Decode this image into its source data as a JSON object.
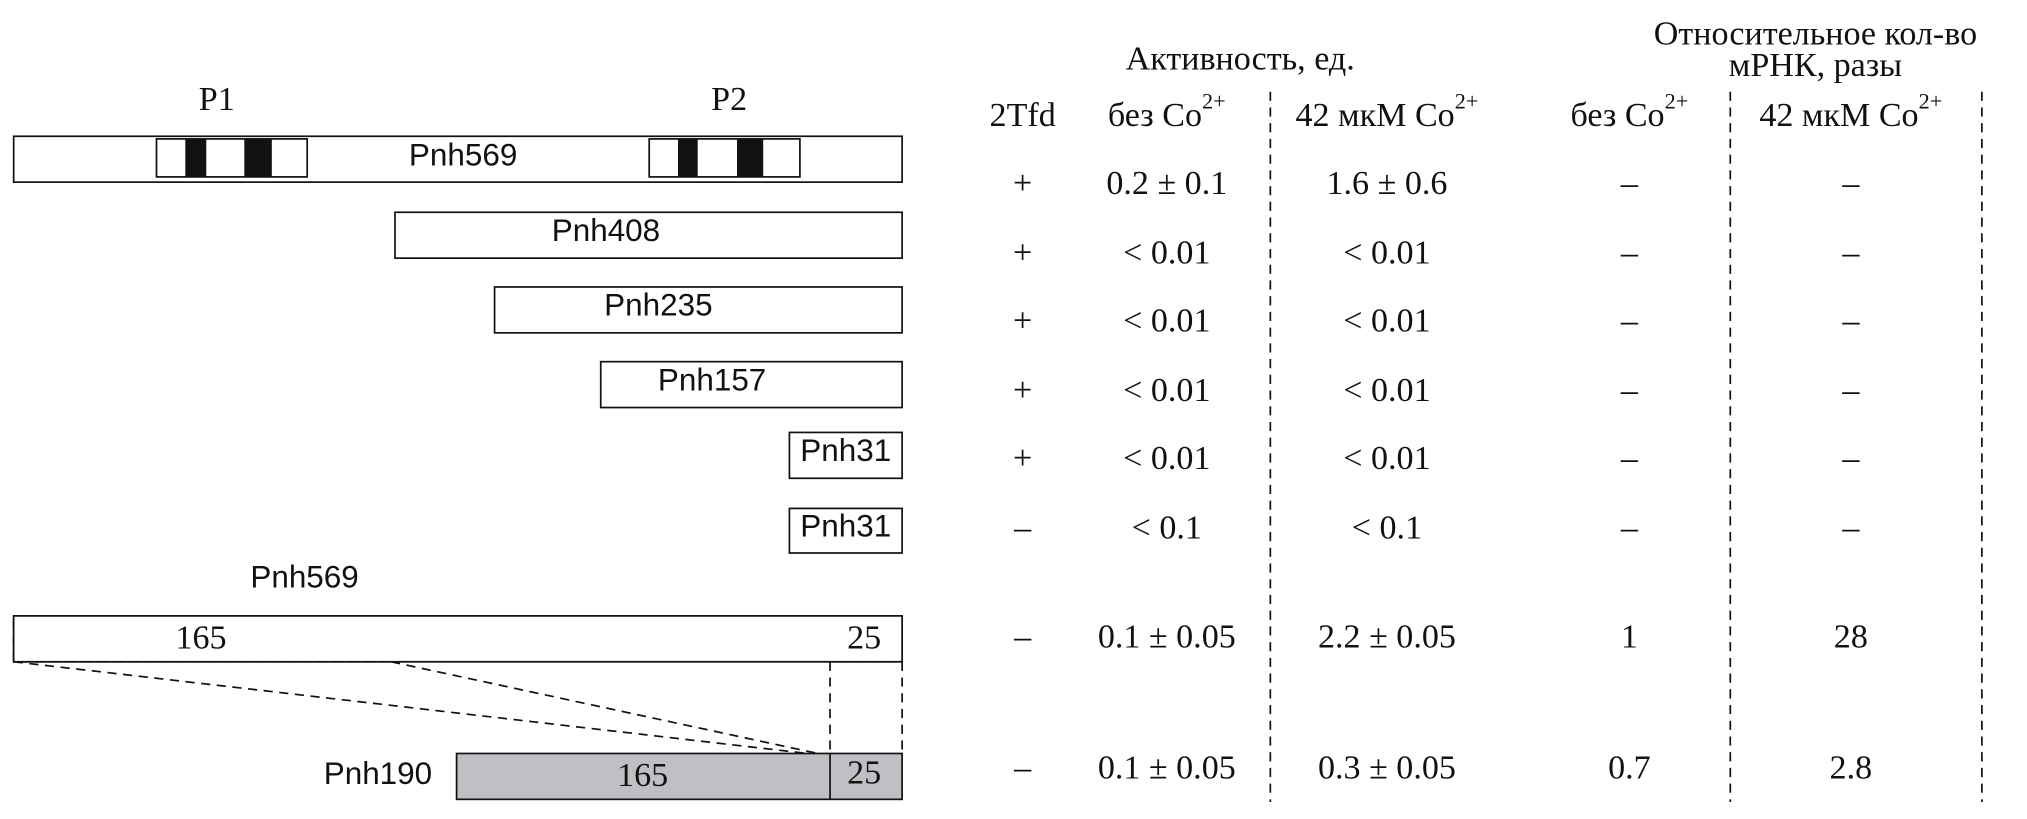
{
  "header": {
    "activity": "Активность, ед.",
    "mrna": [
      "Относительное кол-во",
      "мРНК, разы"
    ],
    "columns": [
      {
        "text": "2Tfd"
      },
      {
        "text": "без Co",
        "sup": "2+"
      },
      {
        "text": "42 мкМ Co",
        "sup": "2+"
      },
      {
        "text": "без Co",
        "sup": "2+"
      },
      {
        "text": "42 мкМ Co",
        "sup": "2+"
      }
    ]
  },
  "promoters": [
    "P1",
    "P2"
  ],
  "constructs": [
    "Pnh569",
    "Pnh408",
    "Pnh235",
    "Pnh157",
    "Pnh31",
    "Pnh31"
  ],
  "fusion_source": {
    "label": "Pnh569",
    "segments": [
      "165",
      "25"
    ]
  },
  "fusion_product": {
    "label": "Pnh190",
    "segments": [
      "165",
      "25"
    ]
  },
  "table": {
    "rows": [
      [
        "+",
        "0.2 ± 0.1",
        "1.6 ± 0.6",
        "–",
        "–"
      ],
      [
        "+",
        "< 0.01",
        "< 0.01",
        "–",
        "–"
      ],
      [
        "+",
        "< 0.01",
        "< 0.01",
        "–",
        "–"
      ],
      [
        "+",
        "< 0.01",
        "< 0.01",
        "–",
        "–"
      ],
      [
        "+",
        "< 0.01",
        "< 0.01",
        "–",
        "–"
      ],
      [
        "–",
        "< 0.1",
        "< 0.1",
        "–",
        "–"
      ],
      [
        "–",
        "0.1 ± 0.05",
        "2.2 ± 0.05",
        "1",
        "28"
      ],
      [
        "–",
        "0.1 ± 0.05",
        "0.3 ± 0.05",
        "0.7",
        "2.8"
      ]
    ]
  }
}
